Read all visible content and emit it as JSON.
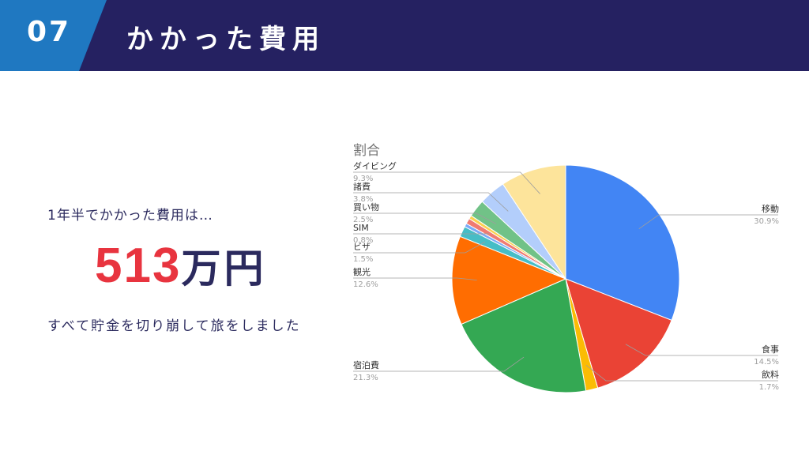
{
  "header": {
    "section_number": "07",
    "title": "かかった費用",
    "accent_color": "#1f78c1",
    "bg_color": "#252161"
  },
  "summary": {
    "lead": "1年半でかかった費用は…",
    "amount": "513",
    "unit": "万円",
    "note": "すべて貯金を切り崩して旅をしました",
    "amount_color": "#e8343f"
  },
  "chart_data": {
    "type": "pie",
    "title": "割合",
    "slices": [
      {
        "name": "移動",
        "value": 30.9,
        "label": "30.9%",
        "color": "#4285f4"
      },
      {
        "name": "食事",
        "value": 14.5,
        "label": "14.5%",
        "color": "#ea4335"
      },
      {
        "name": "飲料",
        "value": 1.7,
        "label": "1.7%",
        "color": "#fbbc04"
      },
      {
        "name": "宿泊費",
        "value": 21.3,
        "label": "21.3%",
        "color": "#34a853"
      },
      {
        "name": "観光",
        "value": 12.6,
        "label": "12.6%",
        "color": "#ff6d01"
      },
      {
        "name": "ビザ",
        "value": 1.5,
        "label": "1.5%",
        "color": "#46bdc6"
      },
      {
        "name": "",
        "value": 0.5,
        "label": "",
        "color": "#7baaf7"
      },
      {
        "name": "SIM",
        "value": 0.8,
        "label": "0.8%",
        "color": "#f07b72"
      },
      {
        "name": "",
        "value": 0.5,
        "label": "",
        "color": "#fcd04f"
      },
      {
        "name": "買い物",
        "value": 2.5,
        "label": "2.5%",
        "color": "#71c287"
      },
      {
        "name": "諸費",
        "value": 3.8,
        "label": "3.8%",
        "color": "#b3cefb"
      },
      {
        "name": "ダイビング",
        "value": 9.3,
        "label": "9.3%",
        "color": "#fde49b"
      }
    ]
  }
}
